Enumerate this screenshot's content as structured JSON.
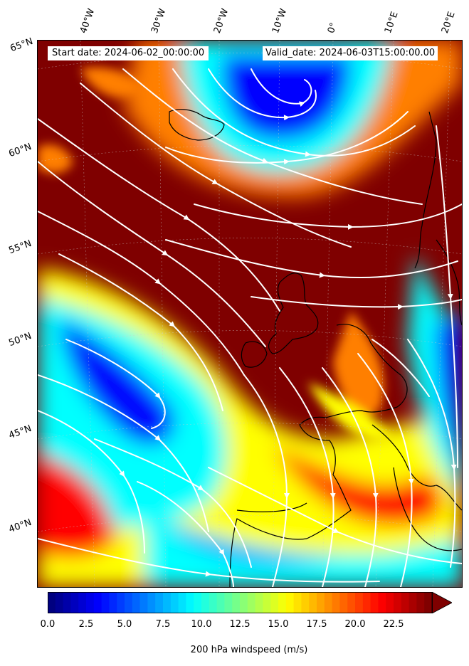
{
  "info": {
    "start_date": "Start date: 2024-06-02_00:00:00",
    "valid_date": "Valid_date: 2024-06-03T15:00:00.00"
  },
  "longitude_labels": [
    "40°W",
    "30°W",
    "20°W",
    "10°W",
    "0°",
    "10°E",
    "20°E"
  ],
  "latitude_labels": [
    "65°N",
    "60°N",
    "55°N",
    "50°N",
    "45°N",
    "40°N"
  ],
  "colorbar": {
    "label": "200 hPa windspeed (m/s)",
    "ticks": [
      "0.0",
      "2.5",
      "5.0",
      "7.5",
      "10.0",
      "12.5",
      "15.0",
      "17.5",
      "20.0",
      "22.5"
    ],
    "range": [
      0,
      25
    ],
    "extend": "max",
    "colormap": "jet",
    "colors": [
      "#00007f",
      "#0000ff",
      "#007fff",
      "#00ffff",
      "#7fff7f",
      "#ffff00",
      "#ff7f00",
      "#ff0000",
      "#7f0000"
    ]
  },
  "map": {
    "field": "200 hPa windspeed",
    "background_color": "#7f0000",
    "streamline_color": "#ffffff",
    "coastline_color": "#000000"
  }
}
